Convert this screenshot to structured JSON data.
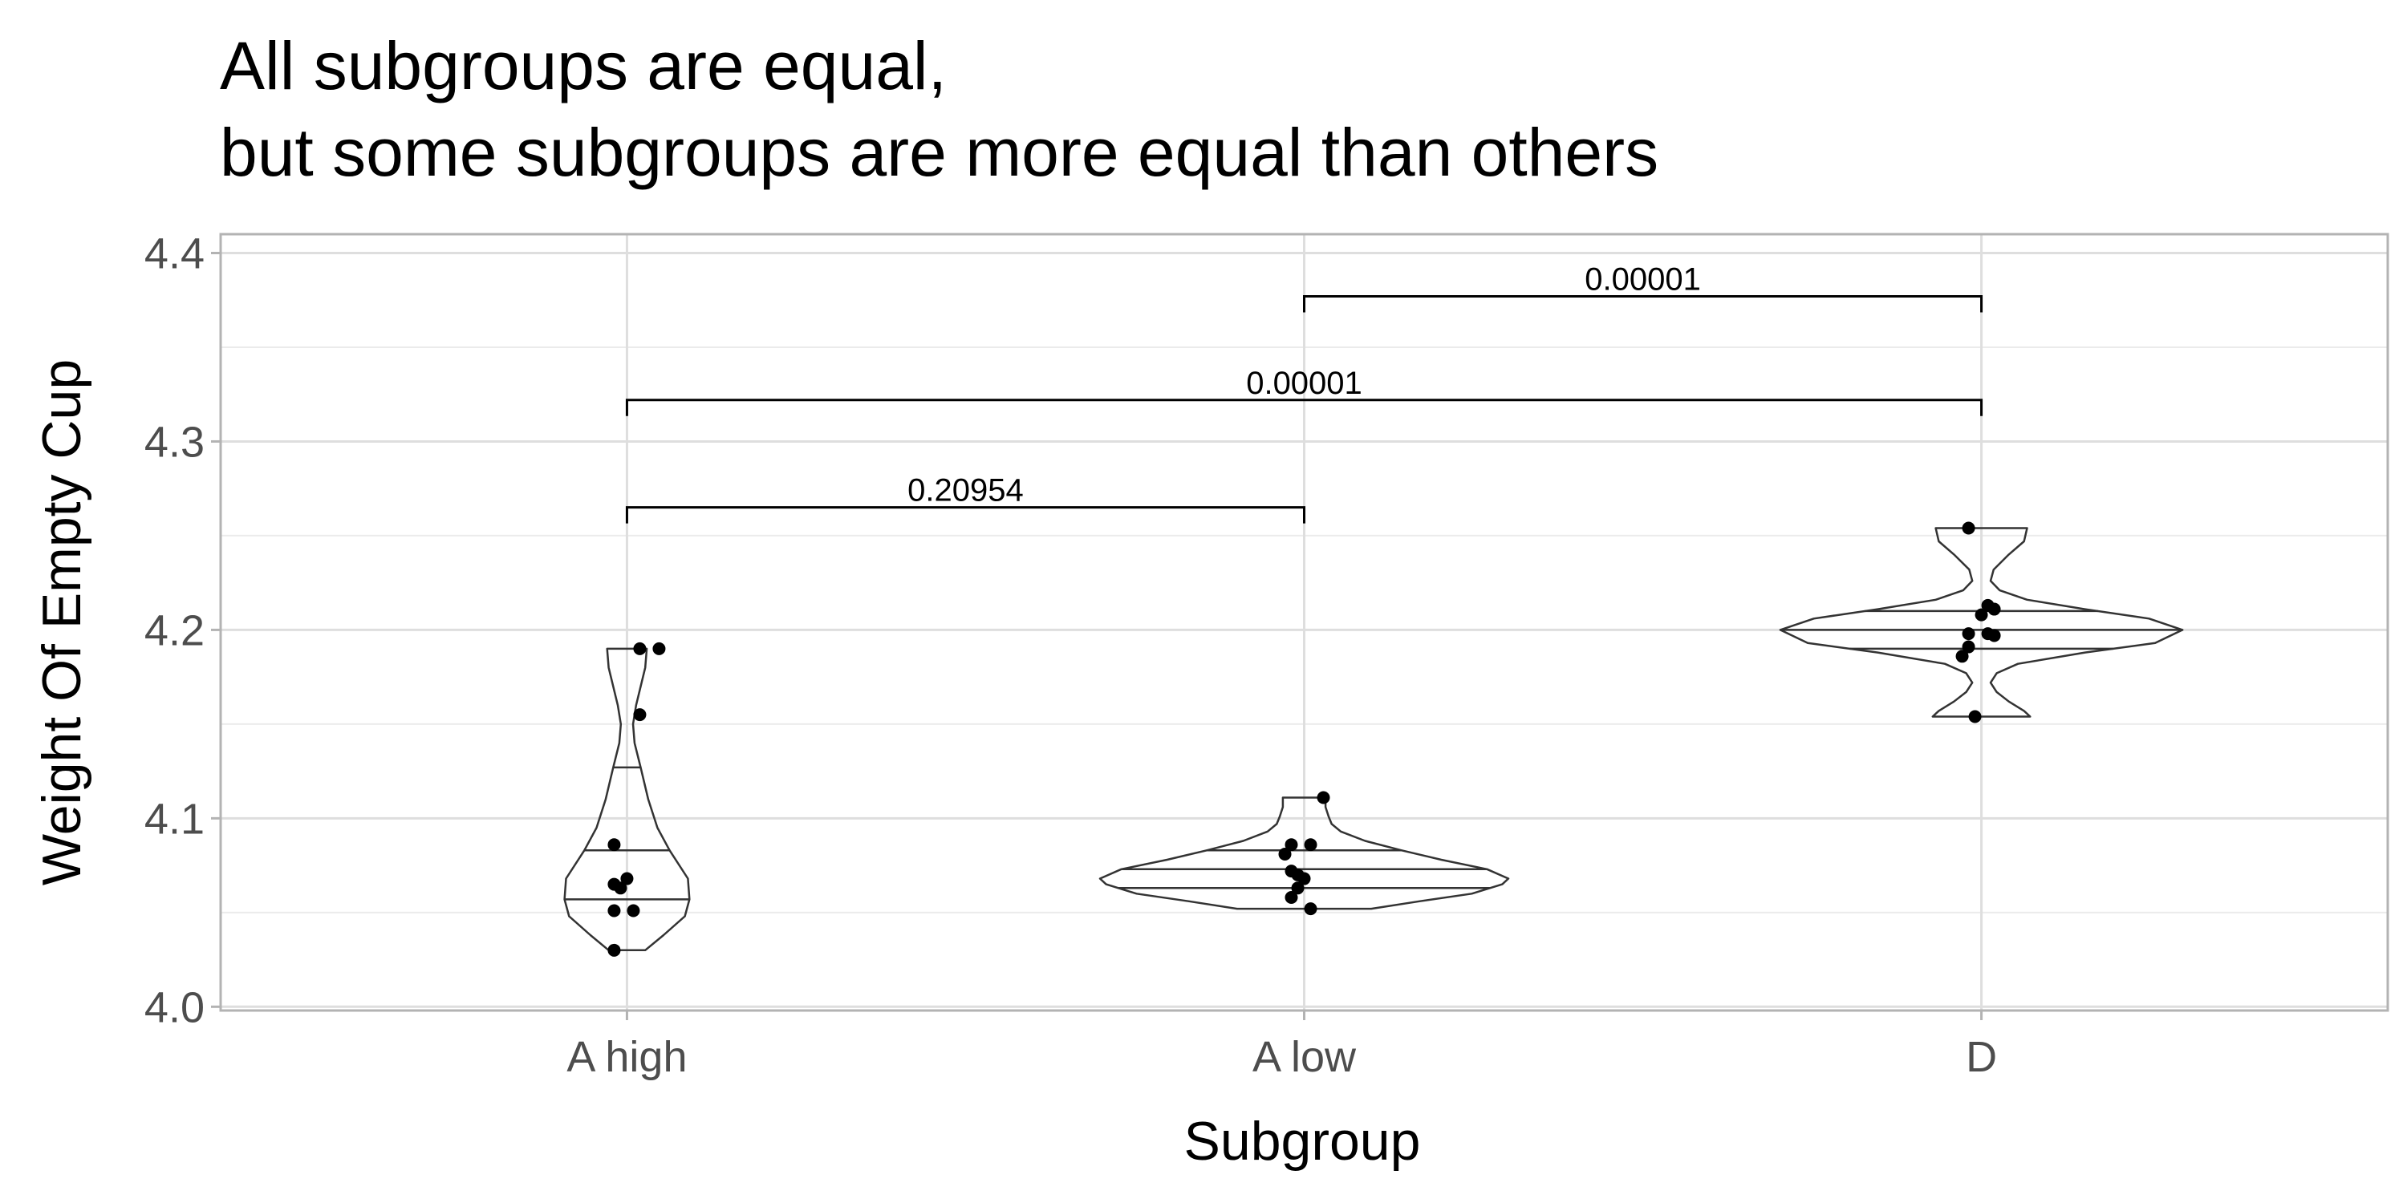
{
  "title": "All subgroups are equal,",
  "subtitle": "but some subgroups are more equal than others",
  "chart_data": {
    "type": "violin",
    "title": "All subgroups are equal,\nbut some subgroups are more equal than others",
    "xlabel": "Subgroup",
    "ylabel": "Weight Of Empty Cup",
    "ylim": [
      3.998,
      4.41
    ],
    "yticks": [
      4.0,
      4.1,
      4.2,
      4.3,
      4.4
    ],
    "ytick_labels": [
      "4.0",
      "4.1",
      "4.2",
      "4.3",
      "4.4"
    ],
    "categories": [
      "A high",
      "A low",
      "D"
    ],
    "grid": true,
    "groups": [
      {
        "name": "A high",
        "points": [
          4.19,
          4.19,
          4.155,
          4.086,
          4.068,
          4.065,
          4.063,
          4.051,
          4.051,
          4.03
        ],
        "quantiles": [
          4.057,
          4.083,
          4.127
        ],
        "violin_profile": [
          [
            4.03,
            0.06
          ],
          [
            4.038,
            0.12
          ],
          [
            4.048,
            0.19
          ],
          [
            4.057,
            0.205
          ],
          [
            4.068,
            0.2
          ],
          [
            4.083,
            0.14
          ],
          [
            4.095,
            0.1
          ],
          [
            4.11,
            0.07
          ],
          [
            4.127,
            0.045
          ],
          [
            4.14,
            0.025
          ],
          [
            4.15,
            0.02
          ],
          [
            4.16,
            0.03
          ],
          [
            4.17,
            0.045
          ],
          [
            4.18,
            0.06
          ],
          [
            4.19,
            0.065
          ]
        ]
      },
      {
        "name": "A low",
        "points": [
          4.111,
          4.086,
          4.086,
          4.081,
          4.072,
          4.07,
          4.068,
          4.063,
          4.058,
          4.052
        ],
        "quantiles": [
          4.063,
          4.073,
          4.083
        ],
        "violin_profile": [
          [
            4.052,
            0.22
          ],
          [
            4.056,
            0.38
          ],
          [
            4.06,
            0.55
          ],
          [
            4.065,
            0.65
          ],
          [
            4.068,
            0.67
          ],
          [
            4.073,
            0.6
          ],
          [
            4.078,
            0.45
          ],
          [
            4.083,
            0.32
          ],
          [
            4.088,
            0.2
          ],
          [
            4.093,
            0.12
          ],
          [
            4.097,
            0.09
          ],
          [
            4.101,
            0.08
          ],
          [
            4.106,
            0.07
          ],
          [
            4.111,
            0.07
          ]
        ]
      },
      {
        "name": "D",
        "points": [
          4.254,
          4.213,
          4.211,
          4.208,
          4.198,
          4.198,
          4.197,
          4.191,
          4.186,
          4.154
        ],
        "quantiles": [
          4.19,
          4.2,
          4.21
        ],
        "violin_profile": [
          [
            4.154,
            0.16
          ],
          [
            4.157,
            0.14
          ],
          [
            4.162,
            0.09
          ],
          [
            4.167,
            0.05
          ],
          [
            4.172,
            0.03
          ],
          [
            4.177,
            0.05
          ],
          [
            4.182,
            0.12
          ],
          [
            4.188,
            0.34
          ],
          [
            4.193,
            0.57
          ],
          [
            4.2,
            0.66
          ],
          [
            4.206,
            0.55
          ],
          [
            4.211,
            0.34
          ],
          [
            4.216,
            0.15
          ],
          [
            4.221,
            0.06
          ],
          [
            4.226,
            0.03
          ],
          [
            4.232,
            0.04
          ],
          [
            4.24,
            0.09
          ],
          [
            4.247,
            0.14
          ],
          [
            4.254,
            0.15
          ]
        ]
      }
    ],
    "comparisons": [
      {
        "from": "A high",
        "to": "A low",
        "label": "0.20954",
        "y": 4.265
      },
      {
        "from": "A high",
        "to": "D",
        "label": "0.00001",
        "y": 4.322
      },
      {
        "from": "A low",
        "to": "D",
        "label": "0.00001",
        "y": 4.377
      }
    ]
  }
}
